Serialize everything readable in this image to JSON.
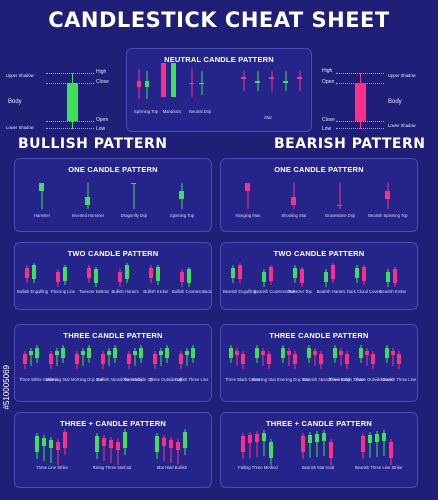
{
  "title": "CANDLESTICK CHEAT SHEET",
  "colors": {
    "bull": "#3ee05a",
    "bear": "#ff2f87",
    "wick_bull": "#3ee05a",
    "wick_bear": "#ff2f87"
  },
  "anatomy_left": {
    "labels": [
      "Upper Shadow",
      "High",
      "Close",
      "Body",
      "Open",
      "Lower Shadow",
      "Low"
    ]
  },
  "anatomy_right": {
    "labels": [
      "High",
      "Upper Shadow",
      "Open",
      "Body",
      "Close",
      "Lower Shadow",
      "Low"
    ]
  },
  "neutral": {
    "title": "NEUTRAL CANDLE PATTERN",
    "items": [
      "Spinning Top",
      "Marubozu",
      "Neutral Doji",
      "Star"
    ]
  },
  "bullish_heading": "BULLISH PATTERN",
  "bearish_heading": "BEARISH PATTERN",
  "bull_one": {
    "title": "ONE CANDLE PATTERN",
    "items": [
      "Hammer",
      "Inverted Hammer",
      "Dragonfly Doji",
      "Spinning Top"
    ]
  },
  "bear_one": {
    "title": "ONE CANDLE PATTERN",
    "items": [
      "Hanging Man",
      "Shooting Star",
      "Gravestone Doji",
      "Bearish Spinning Top"
    ]
  },
  "bull_two": {
    "title": "TWO CANDLE PATTERN",
    "items": [
      "Bullish Engulfing",
      "Piercing Line",
      "Tweezer Bottom",
      "Bullish Harami",
      "Bullish Kicker",
      "Bullish Counterattack"
    ]
  },
  "bear_two": {
    "title": "TWO CANDLE PATTERN",
    "items": [
      "Bearish Engulfing",
      "Bearish Counterattack",
      "Tweezer Top",
      "Bearish Harami",
      "Dark Cloud Cover",
      "Bearish Kicker"
    ]
  },
  "bull_three": {
    "title": "THREE  CANDLE PATTERN",
    "items": [
      "Three White Soldiers",
      "Morning Star",
      "Morning Doji Star",
      "Bullish Abandoned Baby",
      "Three Inside Up",
      "Three Outside Up",
      "Bullish Three Line"
    ]
  },
  "bear_three": {
    "title": "THREE  CANDLE PATTERN",
    "items": [
      "Three Black Crows",
      "Evening Star",
      "Evening Doji Star",
      "Bearish Abandoned Baby",
      "Three Inside Down",
      "Three Outside Down",
      "Bearish Three Line"
    ]
  },
  "bull_more": {
    "title": "THREE + CANDLE PATTERN",
    "items": [
      "Three Line Strike",
      "Rising Three Method",
      "Mat Hold Bullish"
    ]
  },
  "bear_more": {
    "title": "THREE + CANDLE PATTERN",
    "items": [
      "Falling Three Method",
      "Bearish Mat Hold",
      "Bearish Three Line Strike"
    ]
  },
  "watermark": "#510005069"
}
